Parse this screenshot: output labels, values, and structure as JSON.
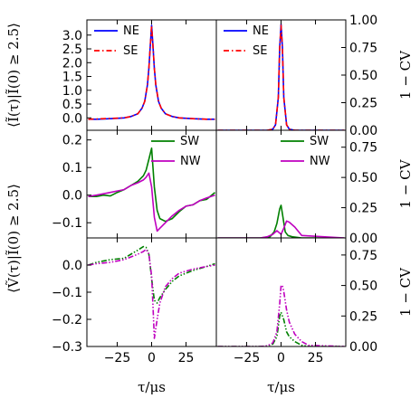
{
  "chart_data": {
    "type": "line",
    "x_ticks": [
      -25,
      0,
      25
    ],
    "x_range": [
      -47,
      47
    ],
    "xlabel": "τ/μs",
    "rows": [
      {
        "left_yticks": [
          "3.0",
          "2.5",
          "2.0",
          "1.5",
          "1.0",
          "0.5",
          "0.0"
        ],
        "left_ytick_values": [
          3.0,
          2.5,
          2.0,
          1.5,
          1.0,
          0.5,
          0.0
        ],
        "left_ylim": [
          -0.45,
          3.55
        ],
        "right_yticks": [
          "1.00",
          "0.75",
          "0.50",
          "0.25",
          "0.00"
        ],
        "right_ylim": [
          0,
          1
        ],
        "right_ylabel": "1 − CV",
        "legend": {
          "placement": "top-left",
          "entries": [
            "NE",
            "SE"
          ]
        },
        "left_series": [
          {
            "name": "NE",
            "color": "#0000ff",
            "dash": "solid",
            "x": [
              -46,
              -40,
              -30,
              -20,
              -15,
              -10,
              -7,
              -5,
              -3,
              -2,
              -1,
              0,
              1,
              2,
              3,
              5,
              7,
              10,
              15,
              20,
              30,
              40,
              46
            ],
            "y": [
              -0.05,
              -0.05,
              -0.03,
              0.0,
              0.05,
              0.15,
              0.35,
              0.6,
              1.2,
              1.8,
              2.6,
              3.35,
              2.6,
              1.8,
              1.2,
              0.6,
              0.35,
              0.15,
              0.05,
              0.0,
              -0.03,
              -0.05,
              -0.05
            ]
          },
          {
            "name": "SE",
            "color": "#ff0000",
            "dash": "dashdot",
            "x": [
              -46,
              -40,
              -30,
              -20,
              -15,
              -10,
              -7,
              -5,
              -3,
              -2,
              -1,
              0,
              1,
              2,
              3,
              5,
              7,
              10,
              15,
              20,
              30,
              40,
              46
            ],
            "y": [
              -0.05,
              -0.04,
              -0.02,
              0.0,
              0.05,
              0.15,
              0.35,
              0.6,
              1.2,
              1.8,
              2.6,
              3.35,
              2.6,
              1.8,
              1.2,
              0.6,
              0.35,
              0.15,
              0.05,
              0.0,
              -0.03,
              -0.05,
              -0.05
            ]
          }
        ],
        "right_series": [
          {
            "name": "NE",
            "color": "#0000ff",
            "dash": "solid",
            "x": [
              -46,
              -15,
              -10,
              -6,
              -4,
              -2,
              -1,
              0,
              1,
              2,
              4,
              6,
              10,
              15,
              46
            ],
            "y": [
              0,
              0,
              0,
              0.01,
              0.05,
              0.3,
              0.75,
              0.96,
              0.75,
              0.3,
              0.05,
              0.01,
              0,
              0,
              0
            ]
          },
          {
            "name": "SE",
            "color": "#ff0000",
            "dash": "dashdot",
            "x": [
              -46,
              -15,
              -10,
              -6,
              -4,
              -2,
              -1,
              0,
              1,
              2,
              4,
              6,
              10,
              15,
              46
            ],
            "y": [
              0,
              0,
              0,
              0.01,
              0.05,
              0.3,
              0.75,
              0.95,
              0.75,
              0.3,
              0.05,
              0.01,
              0,
              0,
              0
            ]
          }
        ]
      },
      {
        "left_yticks": [
          "0.2",
          "0.1",
          "0.0",
          "−0.1"
        ],
        "left_ytick_values": [
          0.2,
          0.1,
          0.0,
          -0.1
        ],
        "left_ylim": [
          -0.155,
          0.235
        ],
        "right_yticks": [
          "0.75",
          "0.50",
          "0.25",
          "0.00"
        ],
        "right_ylim": [
          0,
          0.89
        ],
        "right_ylabel": "1 − CV",
        "legend": {
          "placement": "top-right",
          "entries": [
            "SW",
            "NW"
          ]
        },
        "left_series": [
          {
            "name": "SW",
            "color": "#008000",
            "dash": "solid",
            "x": [
              -46,
              -40,
              -35,
              -30,
              -25,
              -20,
              -15,
              -10,
              -6,
              -4,
              -2,
              0,
              2,
              4,
              6,
              10,
              15,
              20,
              25,
              30,
              35,
              40,
              46
            ],
            "y": [
              -0.005,
              -0.005,
              0.0,
              -0.003,
              0.01,
              0.02,
              0.035,
              0.05,
              0.07,
              0.09,
              0.13,
              0.17,
              0.03,
              -0.055,
              -0.085,
              -0.095,
              -0.085,
              -0.06,
              -0.04,
              -0.035,
              -0.02,
              -0.015,
              0.01
            ]
          },
          {
            "name": "NW",
            "color": "#bf00bf",
            "dash": "solid",
            "x": [
              -46,
              -40,
              -35,
              -30,
              -25,
              -20,
              -15,
              -10,
              -6,
              -4,
              -2,
              0,
              2,
              4,
              6,
              10,
              15,
              20,
              25,
              30,
              35,
              40,
              46
            ],
            "y": [
              -0.005,
              0.0,
              0.005,
              0.01,
              0.015,
              0.02,
              0.035,
              0.045,
              0.055,
              0.065,
              0.08,
              0.03,
              -0.08,
              -0.13,
              -0.12,
              -0.1,
              -0.075,
              -0.055,
              -0.04,
              -0.035,
              -0.02,
              -0.01,
              0.0
            ]
          }
        ],
        "right_series": [
          {
            "name": "SW",
            "color": "#008000",
            "dash": "solid",
            "x": [
              -46,
              -15,
              -8,
              -5,
              -3,
              -1,
              0,
              1,
              3,
              5,
              8,
              15,
              46
            ],
            "y": [
              0,
              0,
              0.01,
              0.05,
              0.12,
              0.24,
              0.27,
              0.2,
              0.05,
              0.02,
              0.01,
              0,
              0
            ]
          },
          {
            "name": "NW",
            "color": "#bf00bf",
            "dash": "solid",
            "x": [
              -46,
              -15,
              -10,
              -6,
              -3,
              -1,
              0,
              2,
              4,
              6,
              10,
              15,
              46
            ],
            "y": [
              0,
              0,
              0.01,
              0.03,
              0.06,
              0.04,
              0.03,
              0.08,
              0.14,
              0.13,
              0.09,
              0.02,
              0
            ]
          }
        ]
      },
      {
        "left_yticks": [
          "0.0",
          "−0.1",
          "−0.2",
          "−0.3"
        ],
        "left_ytick_values": [
          0.0,
          -0.1,
          -0.2,
          -0.3
        ],
        "left_ylim": [
          -0.3,
          0.1
        ],
        "right_yticks": [
          "0.75",
          "0.50",
          "0.25",
          "0.00"
        ],
        "right_ylim": [
          0,
          0.89
        ],
        "right_ylabel": "1 − CV",
        "legend": null,
        "left_series": [
          {
            "name": "SW",
            "color": "#008000",
            "dash": "dashdotdot",
            "x": [
              -46,
              -40,
              -30,
              -20,
              -15,
              -10,
              -6,
              -4,
              -2,
              0,
              2,
              4,
              6,
              10,
              15,
              20,
              30,
              40,
              46
            ],
            "y": [
              0.0,
              0.01,
              0.02,
              0.025,
              0.04,
              0.055,
              0.068,
              0.065,
              0.04,
              -0.05,
              -0.13,
              -0.14,
              -0.12,
              -0.09,
              -0.06,
              -0.04,
              -0.02,
              -0.005,
              0.005
            ]
          },
          {
            "name": "NW",
            "color": "#bf00bf",
            "dash": "dashdotdot",
            "x": [
              -46,
              -40,
              -30,
              -20,
              -15,
              -10,
              -6,
              -4,
              -2,
              0,
              1,
              2,
              4,
              6,
              10,
              15,
              20,
              30,
              40,
              46
            ],
            "y": [
              0.0,
              0.005,
              0.01,
              0.02,
              0.03,
              0.04,
              0.05,
              0.058,
              0.04,
              -0.04,
              -0.15,
              -0.27,
              -0.2,
              -0.14,
              -0.08,
              -0.05,
              -0.03,
              -0.015,
              -0.005,
              0.0
            ]
          }
        ],
        "right_series": [
          {
            "name": "SW",
            "color": "#008000",
            "dash": "dashdotdot",
            "x": [
              -46,
              -15,
              -10,
              -6,
              -3,
              -1,
              0,
              2,
              4,
              6,
              10,
              15,
              20,
              46
            ],
            "y": [
              0,
              0,
              0.005,
              0.02,
              0.08,
              0.25,
              0.28,
              0.22,
              0.12,
              0.08,
              0.04,
              0.01,
              0,
              0
            ]
          },
          {
            "name": "NW",
            "color": "#bf00bf",
            "dash": "dashdotdot",
            "x": [
              -46,
              -15,
              -10,
              -6,
              -3,
              -1,
              0,
              1,
              2,
              4,
              6,
              10,
              15,
              20,
              46
            ],
            "y": [
              0,
              0,
              0.005,
              0.03,
              0.12,
              0.35,
              0.5,
              0.5,
              0.45,
              0.3,
              0.2,
              0.1,
              0.04,
              0.01,
              0
            ]
          }
        ]
      }
    ],
    "left_ylabels": [
      {
        "rows": [
          0
        ],
        "text": "⟨Ĩ(τ)|Ĩ(0) ≥ 2.5⟩"
      },
      {
        "rows": [
          1,
          2
        ],
        "text": "⟨Ṽ(τ)|Ĩ(0) ≥ 2.5⟩"
      }
    ]
  }
}
